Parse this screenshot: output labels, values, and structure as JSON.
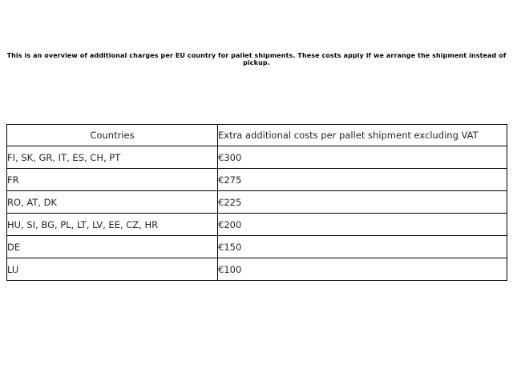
{
  "description": "This is an overview of additional charges per EU country for pallet shipments. These costs apply if we arrange the shipment instead of pickup.",
  "table": {
    "headers": [
      "Countries",
      "Extra additional costs per pallet shipment excluding VAT"
    ],
    "rows": [
      {
        "countries": "FI, SK, GR, IT, ES, CH, PT",
        "cost": "€300"
      },
      {
        "countries": "FR",
        "cost": "€275"
      },
      {
        "countries": "RO, AT, DK",
        "cost": "€225"
      },
      {
        "countries": "HU, SI, BG, PL, LT, LV, EE, CZ, HR",
        "cost": "€200"
      },
      {
        "countries": "DE",
        "cost": "€150"
      },
      {
        "countries": "LU",
        "cost": "€100"
      }
    ]
  },
  "colors": {
    "background": "#ffffff",
    "border": "#000000",
    "table_text": "#262626",
    "description_text": "#000000"
  }
}
